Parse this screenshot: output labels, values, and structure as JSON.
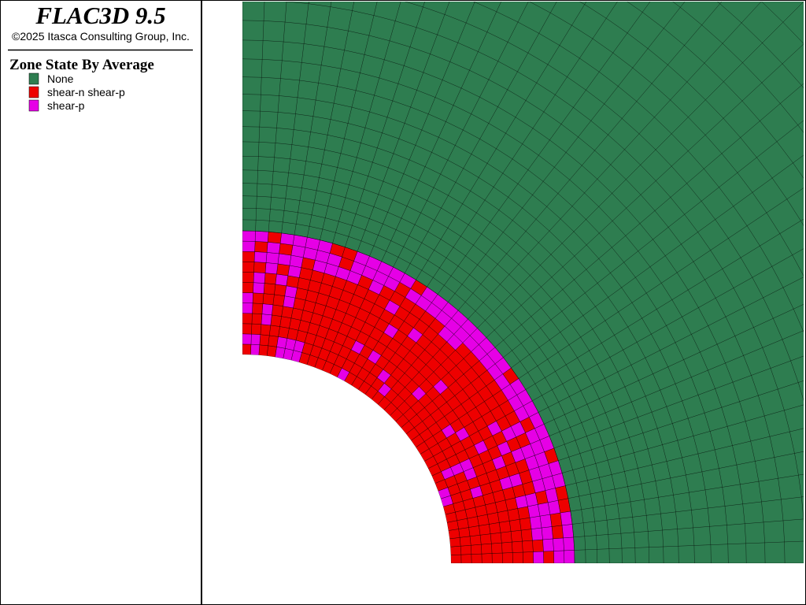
{
  "header": {
    "title": "FLAC3D 9.5",
    "copyright": "©2025 Itasca Consulting Group, Inc."
  },
  "legend": {
    "title": "Zone State By Average",
    "items": [
      {
        "label": "None",
        "color": "#2e7d50"
      },
      {
        "label": "shear-n shear-p",
        "color": "#ee0000"
      },
      {
        "label": "shear-p",
        "color": "#e600e6"
      }
    ]
  }
}
